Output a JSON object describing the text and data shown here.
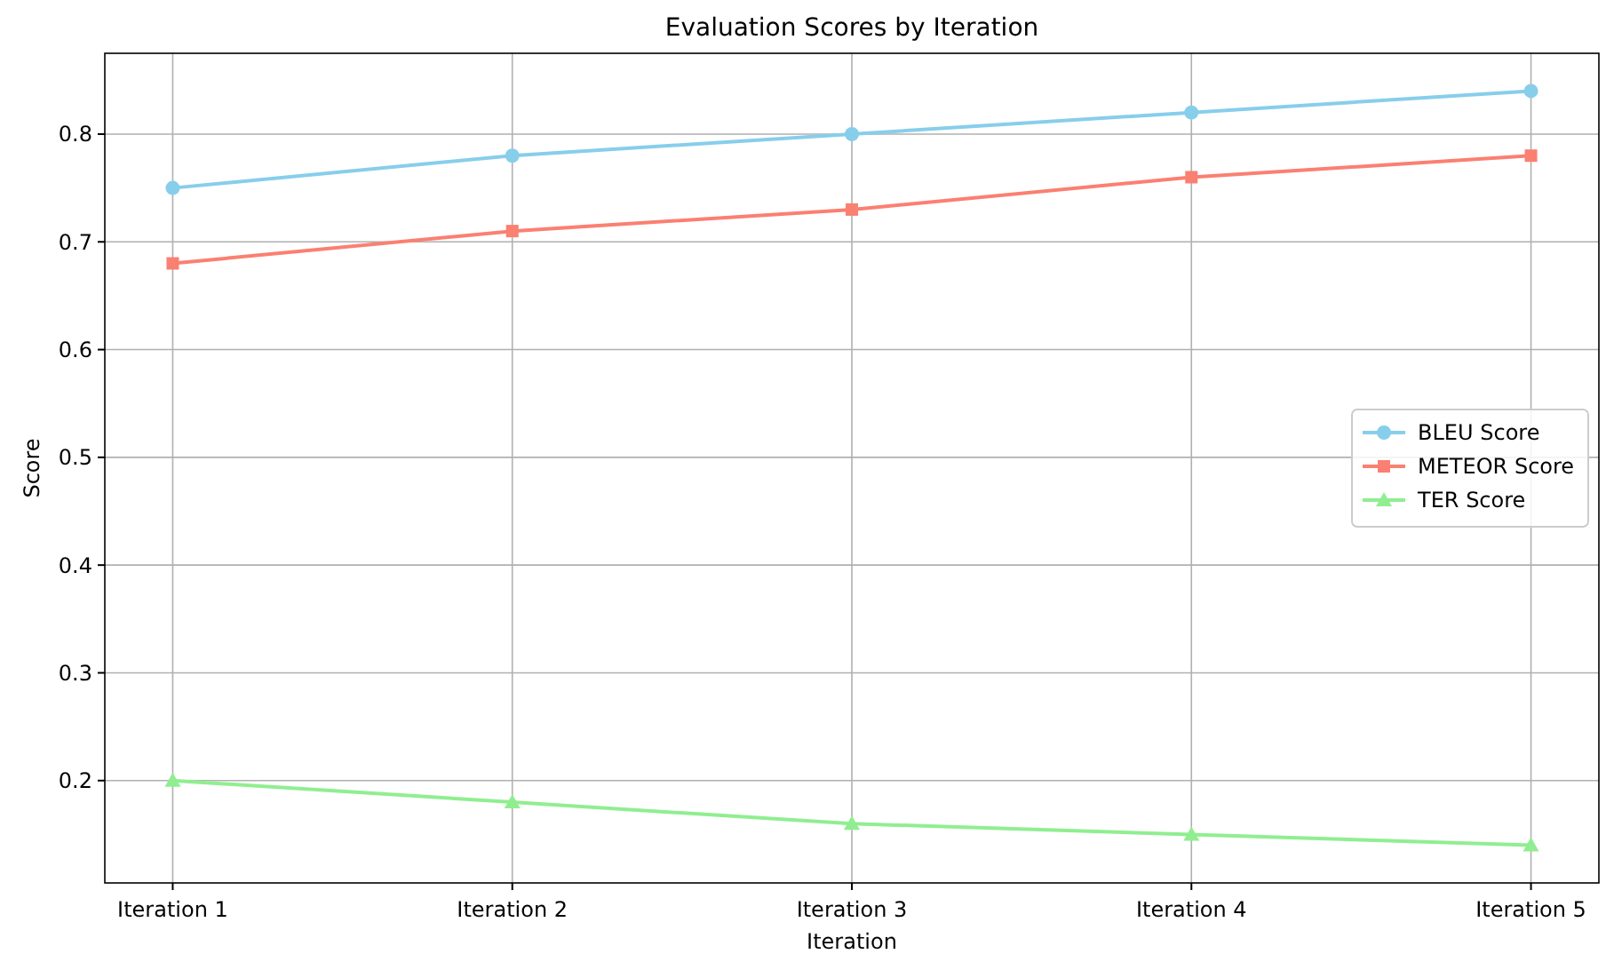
{
  "chart_data": {
    "type": "line",
    "title": "Evaluation Scores by Iteration",
    "xlabel": "Iteration",
    "ylabel": "Score",
    "categories": [
      "Iteration 1",
      "Iteration 2",
      "Iteration 3",
      "Iteration 4",
      "Iteration 5"
    ],
    "series": [
      {
        "name": "BLEU Score",
        "color": "#87ceeb",
        "marker": "circle",
        "values": [
          0.75,
          0.78,
          0.8,
          0.82,
          0.84
        ]
      },
      {
        "name": "METEOR Score",
        "color": "#fa8072",
        "marker": "square",
        "values": [
          0.68,
          0.71,
          0.73,
          0.76,
          0.78
        ]
      },
      {
        "name": "TER Score",
        "color": "#90ee90",
        "marker": "triangle",
        "values": [
          0.2,
          0.18,
          0.16,
          0.15,
          0.14
        ]
      }
    ],
    "ylim": [
      0.105,
      0.875
    ],
    "yticks": [
      {
        "value": 0.2,
        "label": "0.2"
      },
      {
        "value": 0.3,
        "label": "0.3"
      },
      {
        "value": 0.4,
        "label": "0.4"
      },
      {
        "value": 0.5,
        "label": "0.5"
      },
      {
        "value": 0.6,
        "label": "0.6"
      },
      {
        "value": 0.7,
        "label": "0.7"
      },
      {
        "value": 0.8,
        "label": "0.8"
      }
    ],
    "grid": true,
    "legend": "right",
    "line_style": "solid"
  }
}
